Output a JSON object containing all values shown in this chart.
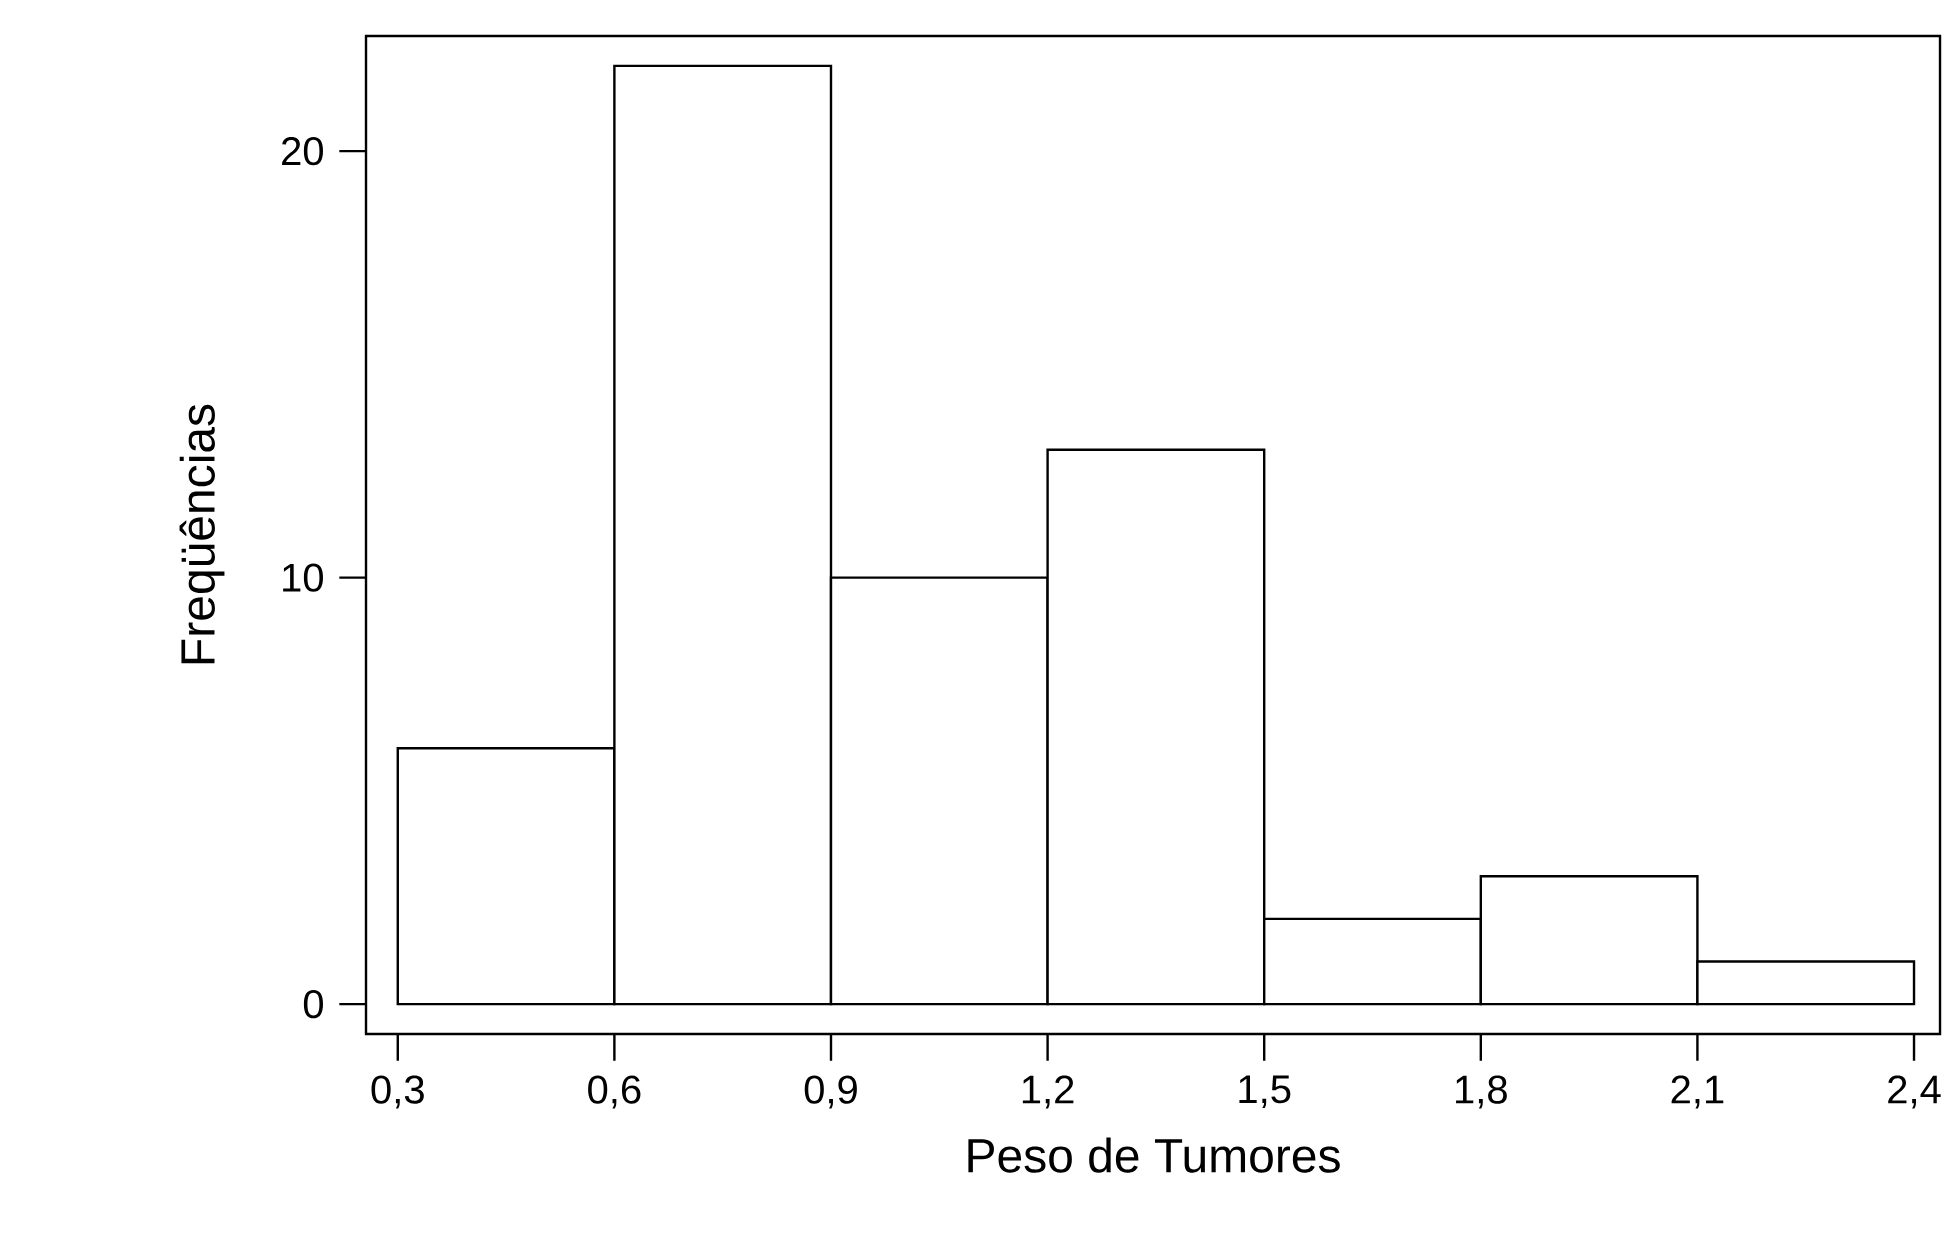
{
  "chart_data": {
    "type": "histogram",
    "xlabel": "Peso de Tumores",
    "ylabel": "Freqüências",
    "bins": [
      0.3,
      0.6,
      0.9,
      1.2,
      1.5,
      1.8,
      2.1,
      2.4
    ],
    "values": [
      6,
      22,
      10,
      13,
      2,
      3,
      1
    ],
    "xlim": [
      0.256,
      2.436
    ],
    "ylim": [
      -0.7,
      22.7
    ],
    "xticks": [
      {
        "value": 0.3,
        "label": "0,3"
      },
      {
        "value": 0.6,
        "label": "0,6"
      },
      {
        "value": 0.9,
        "label": "0,9"
      },
      {
        "value": 1.2,
        "label": "1,2"
      },
      {
        "value": 1.5,
        "label": "1,5"
      },
      {
        "value": 1.8,
        "label": "1,8"
      },
      {
        "value": 2.1,
        "label": "2,1"
      },
      {
        "value": 2.4,
        "label": "2,4"
      }
    ],
    "yticks": [
      0,
      10,
      20
    ],
    "grid": false
  }
}
